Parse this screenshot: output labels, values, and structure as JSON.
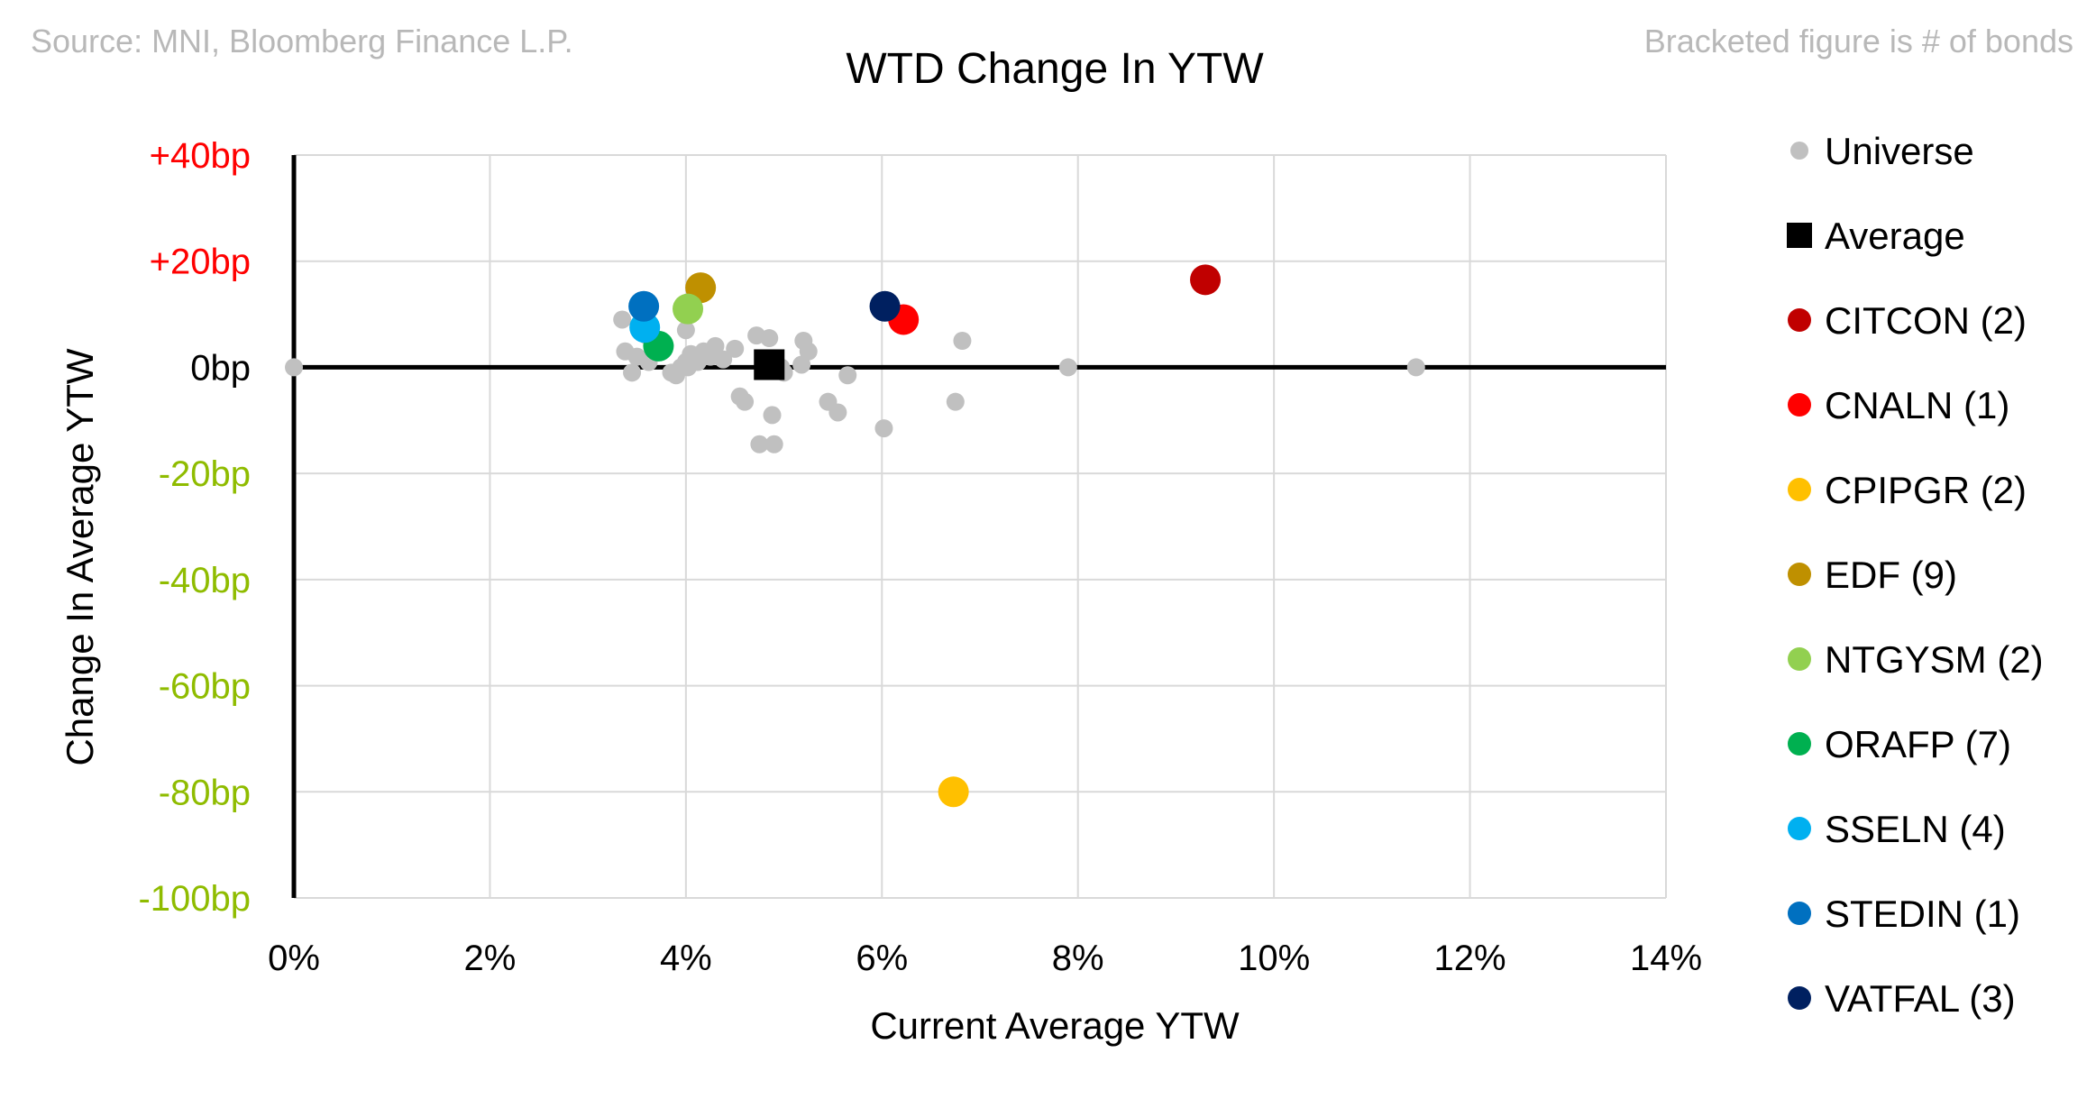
{
  "header": {
    "source": "Source: MNI, Bloomberg Finance L.P.",
    "note": "Bracketed figure is # of bonds"
  },
  "chart_data": {
    "type": "scatter",
    "title": "WTD Change In YTW",
    "xlabel": "Current Average YTW",
    "ylabel": "Change In Average YTW",
    "xlim": [
      0,
      14
    ],
    "ylim": [
      -100,
      40
    ],
    "x_ticks": [
      0,
      2,
      4,
      6,
      8,
      10,
      12,
      14
    ],
    "x_tick_labels": [
      "0%",
      "2%",
      "4%",
      "6%",
      "8%",
      "10%",
      "12%",
      "14%"
    ],
    "y_ticks": [
      40,
      20,
      0,
      -20,
      -40,
      -60,
      -80,
      -100
    ],
    "y_tick_labels": [
      "+40bp",
      "+20bp",
      "0bp",
      "-20bp",
      "-40bp",
      "-60bp",
      "-80bp",
      "-100bp"
    ],
    "y_tick_colors": {
      "positive": "#ff0000",
      "zero": "#000000",
      "negative": "#8fbc00"
    },
    "grid": true,
    "legend_position": "right",
    "series": [
      {
        "name": "Universe",
        "label": "Universe",
        "marker": "circle",
        "color": "#c0c0c0",
        "size": "small",
        "points": [
          [
            0.0,
            0
          ],
          [
            3.35,
            9
          ],
          [
            3.38,
            3
          ],
          [
            3.45,
            -1
          ],
          [
            3.5,
            2
          ],
          [
            3.6,
            6
          ],
          [
            3.62,
            1
          ],
          [
            3.85,
            -1
          ],
          [
            3.9,
            -1.5
          ],
          [
            3.95,
            0
          ],
          [
            4.0,
            7
          ],
          [
            4.0,
            1
          ],
          [
            4.02,
            0
          ],
          [
            4.05,
            2.5
          ],
          [
            4.12,
            1
          ],
          [
            4.18,
            3
          ],
          [
            4.25,
            2
          ],
          [
            4.3,
            4
          ],
          [
            4.38,
            1.5
          ],
          [
            4.5,
            3.5
          ],
          [
            4.55,
            -5.5
          ],
          [
            4.6,
            -6.5
          ],
          [
            4.72,
            6
          ],
          [
            4.75,
            -14.5
          ],
          [
            4.85,
            5.5
          ],
          [
            4.88,
            -9
          ],
          [
            4.9,
            -14.5
          ],
          [
            4.97,
            0
          ],
          [
            5.0,
            -1
          ],
          [
            5.18,
            0.5
          ],
          [
            5.2,
            5
          ],
          [
            5.25,
            3
          ],
          [
            5.45,
            -6.5
          ],
          [
            5.55,
            -8.5
          ],
          [
            5.65,
            -1.5
          ],
          [
            6.02,
            -11.5
          ],
          [
            6.75,
            -6.5
          ],
          [
            6.82,
            5
          ],
          [
            7.9,
            0
          ],
          [
            11.45,
            0
          ]
        ]
      },
      {
        "name": "Average",
        "label": "Average",
        "marker": "square",
        "color": "#000000",
        "points": [
          [
            4.85,
            0.5
          ]
        ]
      },
      {
        "name": "CITCON",
        "label": "CITCON  (2)",
        "marker": "circle",
        "color": "#c00000",
        "points": [
          [
            9.3,
            16.5
          ]
        ]
      },
      {
        "name": "CNALN",
        "label": "CNALN  (1)",
        "marker": "circle",
        "color": "#ff0000",
        "points": [
          [
            6.22,
            9
          ]
        ]
      },
      {
        "name": "CPIPGR",
        "label": "CPIPGR  (2)",
        "marker": "circle",
        "color": "#ffc000",
        "points": [
          [
            6.73,
            -80
          ]
        ]
      },
      {
        "name": "EDF",
        "label": "EDF  (9)",
        "marker": "circle",
        "color": "#bf9000",
        "points": [
          [
            4.15,
            15
          ]
        ]
      },
      {
        "name": "NTGYSM",
        "label": "NTGYSM  (2)",
        "marker": "circle",
        "color": "#92d050",
        "points": [
          [
            4.02,
            11
          ]
        ]
      },
      {
        "name": "ORAFP",
        "label": "ORAFP  (7)",
        "marker": "circle",
        "color": "#00b050",
        "points": [
          [
            3.72,
            4
          ]
        ]
      },
      {
        "name": "SSELN",
        "label": "SSELN  (4)",
        "marker": "circle",
        "color": "#00b0f0",
        "points": [
          [
            3.58,
            7.5
          ]
        ]
      },
      {
        "name": "STEDIN",
        "label": "STEDIN  (1)",
        "marker": "circle",
        "color": "#0070c0",
        "points": [
          [
            3.57,
            11.5
          ]
        ]
      },
      {
        "name": "VATFAL",
        "label": "VATFAL  (3)",
        "marker": "circle",
        "color": "#002060",
        "points": [
          [
            6.03,
            11.5
          ]
        ]
      }
    ]
  }
}
